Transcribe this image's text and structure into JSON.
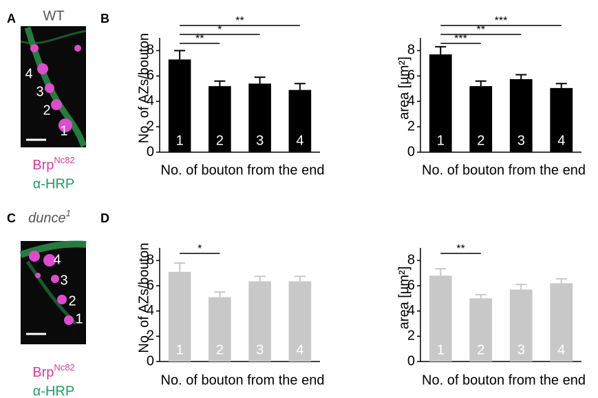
{
  "panel_labels": [
    "A",
    "B",
    "C",
    "D"
  ],
  "images": [
    {
      "genotype": "WT",
      "bouton_labels": [
        "4",
        "3",
        "2",
        "1"
      ],
      "stain_1": "Brp",
      "stain_1_sup": "Nc82",
      "stain_2": "α-HRP"
    },
    {
      "genotype": "dunce",
      "genotype_sup": "1",
      "bouton_labels": [
        "4",
        "3",
        "2",
        "1"
      ],
      "stain_1": "Brp",
      "stain_1_sup": "Nc82",
      "stain_2": "α-HRP"
    }
  ],
  "chart_data": [
    {
      "type": "bar",
      "y_label": "No. of AZs/bouton",
      "x_label": "No. of bouton from the end",
      "color": "#000000",
      "category_color": "#ffffff",
      "categories": [
        "1",
        "2",
        "3",
        "4"
      ],
      "values": [
        7.3,
        5.2,
        5.4,
        4.9
      ],
      "errors": [
        0.7,
        0.4,
        0.5,
        0.5
      ],
      "ylim": [
        0,
        9
      ],
      "yticks": [
        0,
        2,
        4,
        6,
        8
      ],
      "comparisons": [
        {
          "pair": [
            0,
            1
          ],
          "label": "**"
        },
        {
          "pair": [
            0,
            2
          ],
          "label": "*"
        },
        {
          "pair": [
            0,
            3
          ],
          "label": "**"
        }
      ]
    },
    {
      "type": "bar",
      "y_label": "area [µm²]",
      "x_label": "No. of bouton from the end",
      "color": "#000000",
      "category_color": "#ffffff",
      "categories": [
        "1",
        "2",
        "3",
        "4"
      ],
      "values": [
        7.7,
        5.2,
        5.75,
        5.05
      ],
      "errors": [
        0.6,
        0.4,
        0.35,
        0.35
      ],
      "ylim": [
        0,
        9
      ],
      "yticks": [
        0,
        2,
        4,
        6,
        8
      ],
      "comparisons": [
        {
          "pair": [
            0,
            1
          ],
          "label": "***"
        },
        {
          "pair": [
            0,
            2
          ],
          "label": "**"
        },
        {
          "pair": [
            0,
            3
          ],
          "label": "***"
        }
      ]
    },
    {
      "type": "bar",
      "y_label": "No. of AZs/bouton",
      "x_label": "No. of bouton from the end",
      "color": "#c8c8c8",
      "category_color": "#ffffff",
      "categories": [
        "1",
        "2",
        "3",
        "4"
      ],
      "values": [
        7.1,
        5.1,
        6.35,
        6.35
      ],
      "errors": [
        0.7,
        0.4,
        0.4,
        0.4
      ],
      "ylim": [
        0,
        9
      ],
      "yticks": [
        0,
        2,
        4,
        6,
        8
      ],
      "comparisons": [
        {
          "pair": [
            0,
            1
          ],
          "label": "*"
        }
      ]
    },
    {
      "type": "bar",
      "y_label": "area [µm²]",
      "x_label": "No. of bouton from the end",
      "color": "#c8c8c8",
      "category_color": "#ffffff",
      "categories": [
        "1",
        "2",
        "3",
        "4"
      ],
      "values": [
        6.8,
        5.0,
        5.7,
        6.2
      ],
      "errors": [
        0.55,
        0.3,
        0.4,
        0.35
      ],
      "ylim": [
        0,
        9
      ],
      "yticks": [
        0,
        2,
        4,
        6,
        8
      ],
      "comparisons": [
        {
          "pair": [
            0,
            1
          ],
          "label": "**"
        }
      ]
    }
  ]
}
